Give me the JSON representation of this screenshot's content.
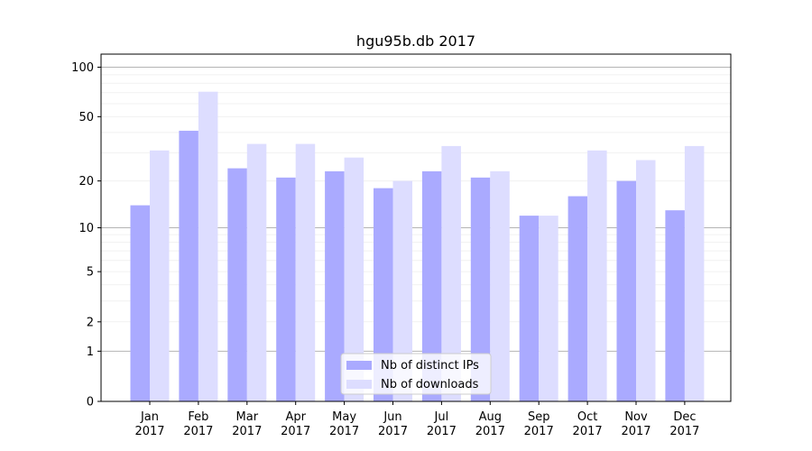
{
  "chart_data": {
    "type": "bar",
    "title": "hgu95b.db 2017",
    "xlabel": "",
    "ylabel": "",
    "yscale": "log1p",
    "ylim": [
      0,
      120
    ],
    "categories": [
      [
        "Jan",
        "2017"
      ],
      [
        "Feb",
        "2017"
      ],
      [
        "Mar",
        "2017"
      ],
      [
        "Apr",
        "2017"
      ],
      [
        "May",
        "2017"
      ],
      [
        "Jun",
        "2017"
      ],
      [
        "Jul",
        "2017"
      ],
      [
        "Aug",
        "2017"
      ],
      [
        "Sep",
        "2017"
      ],
      [
        "Oct",
        "2017"
      ],
      [
        "Nov",
        "2017"
      ],
      [
        "Dec",
        "2017"
      ]
    ],
    "yticks": [
      "0",
      "1",
      "2",
      "5",
      "10",
      "20",
      "50",
      "100"
    ],
    "series": [
      {
        "name": "Nb of distinct IPs",
        "color": "#aaaaff",
        "values": [
          14,
          41,
          24,
          21,
          23,
          18,
          23,
          21,
          12,
          16,
          20,
          13
        ]
      },
      {
        "name": "Nb of downloads",
        "color": "#ddddff",
        "values": [
          31,
          71,
          34,
          34,
          28,
          20,
          33,
          23,
          12,
          31,
          27,
          33
        ]
      }
    ],
    "grid": true,
    "legend_position": "bottom-center"
  }
}
